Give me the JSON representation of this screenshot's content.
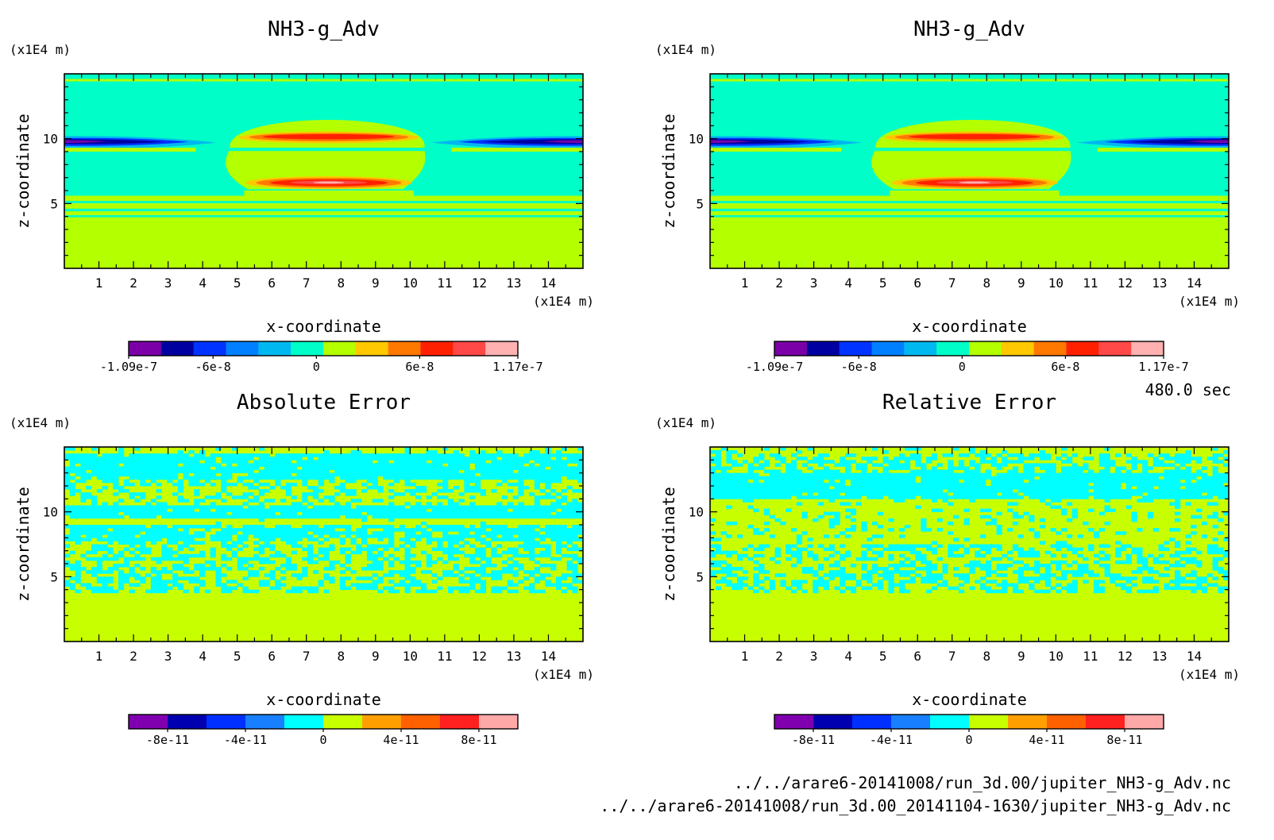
{
  "time_label": "480.0 sec",
  "file_lines": [
    "../../arare6-20141008/run_3d.00/jupiter_NH3-g_Adv.nc",
    "../../arare6-20141008/run_3d.00_20141104-1630/jupiter_NH3-g_Adv.nc"
  ],
  "chart_data": [
    {
      "type": "heatmap",
      "panel": "top-left",
      "title": "NH3-g_Adv",
      "xlabel": "x-coordinate",
      "ylabel": "z-coordinate",
      "x_unit": "(x1E4 m)",
      "y_unit": "(x1E4 m)",
      "xlim": [
        0,
        15
      ],
      "ylim": [
        0,
        15
      ],
      "x_ticks": [
        "1",
        "2",
        "3",
        "4",
        "5",
        "6",
        "7",
        "8",
        "9",
        "10",
        "11",
        "12",
        "13",
        "14"
      ],
      "y_ticks": [
        "5",
        "10"
      ],
      "colorbar": {
        "colors": [
          "#7b00a8",
          "#0000a0",
          "#0033ff",
          "#0080ff",
          "#00b8f0",
          "#00ffc8",
          "#b4ff00",
          "#ffc800",
          "#ff7800",
          "#ff2000",
          "#ff4848",
          "#ffb0b0"
        ],
        "labels": [
          "-1.09e-7",
          "-6e-8",
          "0",
          "6e-8",
          "1.17e-7"
        ],
        "range": [
          -1.09e-07,
          1.17e-07
        ]
      },
      "field": "advection"
    },
    {
      "type": "heatmap",
      "panel": "top-right",
      "title": "NH3-g_Adv",
      "xlabel": "x-coordinate",
      "ylabel": "z-coordinate",
      "x_unit": "(x1E4 m)",
      "y_unit": "(x1E4 m)",
      "xlim": [
        0,
        15
      ],
      "ylim": [
        0,
        15
      ],
      "x_ticks": [
        "1",
        "2",
        "3",
        "4",
        "5",
        "6",
        "7",
        "8",
        "9",
        "10",
        "11",
        "12",
        "13",
        "14"
      ],
      "y_ticks": [
        "5",
        "10"
      ],
      "colorbar": {
        "colors": [
          "#7b00a8",
          "#0000a0",
          "#0033ff",
          "#0080ff",
          "#00b8f0",
          "#00ffc8",
          "#b4ff00",
          "#ffc800",
          "#ff7800",
          "#ff2000",
          "#ff4848",
          "#ffb0b0"
        ],
        "labels": [
          "-1.09e-7",
          "-6e-8",
          "0",
          "6e-8",
          "1.17e-7"
        ],
        "range": [
          -1.09e-07,
          1.17e-07
        ]
      },
      "field": "advection"
    },
    {
      "type": "heatmap",
      "panel": "bottom-left",
      "title": "Absolute Error",
      "xlabel": "x-coordinate",
      "ylabel": "z-coordinate",
      "x_unit": "(x1E4 m)",
      "y_unit": "(x1E4 m)",
      "xlim": [
        0,
        15
      ],
      "ylim": [
        0,
        15
      ],
      "x_ticks": [
        "1",
        "2",
        "3",
        "4",
        "5",
        "6",
        "7",
        "8",
        "9",
        "10",
        "11",
        "12",
        "13",
        "14"
      ],
      "y_ticks": [
        "5",
        "10"
      ],
      "colorbar": {
        "colors": [
          "#8000b0",
          "#0000b0",
          "#0030ff",
          "#1880ff",
          "#00ffff",
          "#c8ff00",
          "#ffa000",
          "#ff6000",
          "#ff2020",
          "#ffa8a8"
        ],
        "labels": [
          "-8e-11",
          "-4e-11",
          "0",
          "4e-11",
          "8e-11"
        ],
        "range": [
          -1e-10,
          1e-10
        ]
      },
      "field": "abs_error"
    },
    {
      "type": "heatmap",
      "panel": "bottom-right",
      "title": "Relative Error",
      "xlabel": "x-coordinate",
      "ylabel": "z-coordinate",
      "x_unit": "(x1E4 m)",
      "y_unit": "(x1E4 m)",
      "xlim": [
        0,
        15
      ],
      "ylim": [
        0,
        15
      ],
      "x_ticks": [
        "1",
        "2",
        "3",
        "4",
        "5",
        "6",
        "7",
        "8",
        "9",
        "10",
        "11",
        "12",
        "13",
        "14"
      ],
      "y_ticks": [
        "5",
        "10"
      ],
      "colorbar": {
        "colors": [
          "#8000b0",
          "#0000b0",
          "#0030ff",
          "#1880ff",
          "#00ffff",
          "#c8ff00",
          "#ffa000",
          "#ff6000",
          "#ff2020",
          "#ffa8a8"
        ],
        "labels": [
          "-8e-11",
          "-4e-11",
          "0",
          "4e-11",
          "8e-11"
        ],
        "range": [
          -1e-10,
          1e-10
        ]
      },
      "field": "rel_error"
    }
  ]
}
